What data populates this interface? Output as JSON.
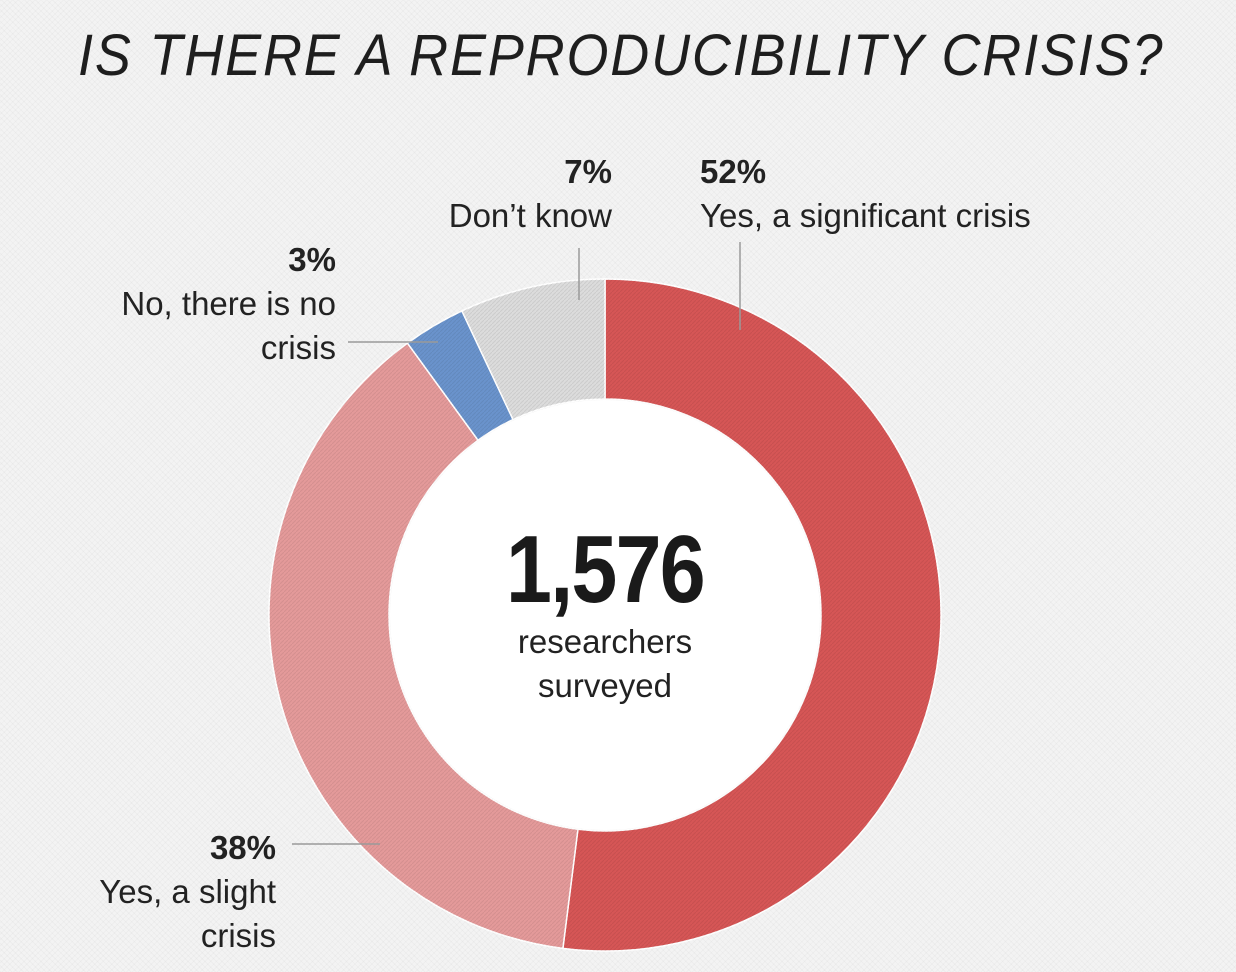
{
  "chart_data": {
    "type": "pie",
    "title": "IS THERE A REPRODUCIBILITY CRISIS?",
    "center": {
      "value": "1,576",
      "caption_lines": [
        "researchers",
        "surveyed"
      ]
    },
    "slices": [
      {
        "key": "significant",
        "pct_label": "52%",
        "label": "Yes, a significant crisis",
        "value": 52,
        "color": "#d65656"
      },
      {
        "key": "slight",
        "pct_label": "38%",
        "label": "Yes, a slight crisis",
        "value": 38,
        "color": "#e49a9a"
      },
      {
        "key": "nocrisis",
        "pct_label": "3%",
        "label": "No, there is no crisis",
        "value": 3,
        "color": "#6a93cc"
      },
      {
        "key": "dontknow",
        "pct_label": "7%",
        "label": "Don’t know",
        "value": 7,
        "color": "#dcdcdc"
      }
    ]
  }
}
